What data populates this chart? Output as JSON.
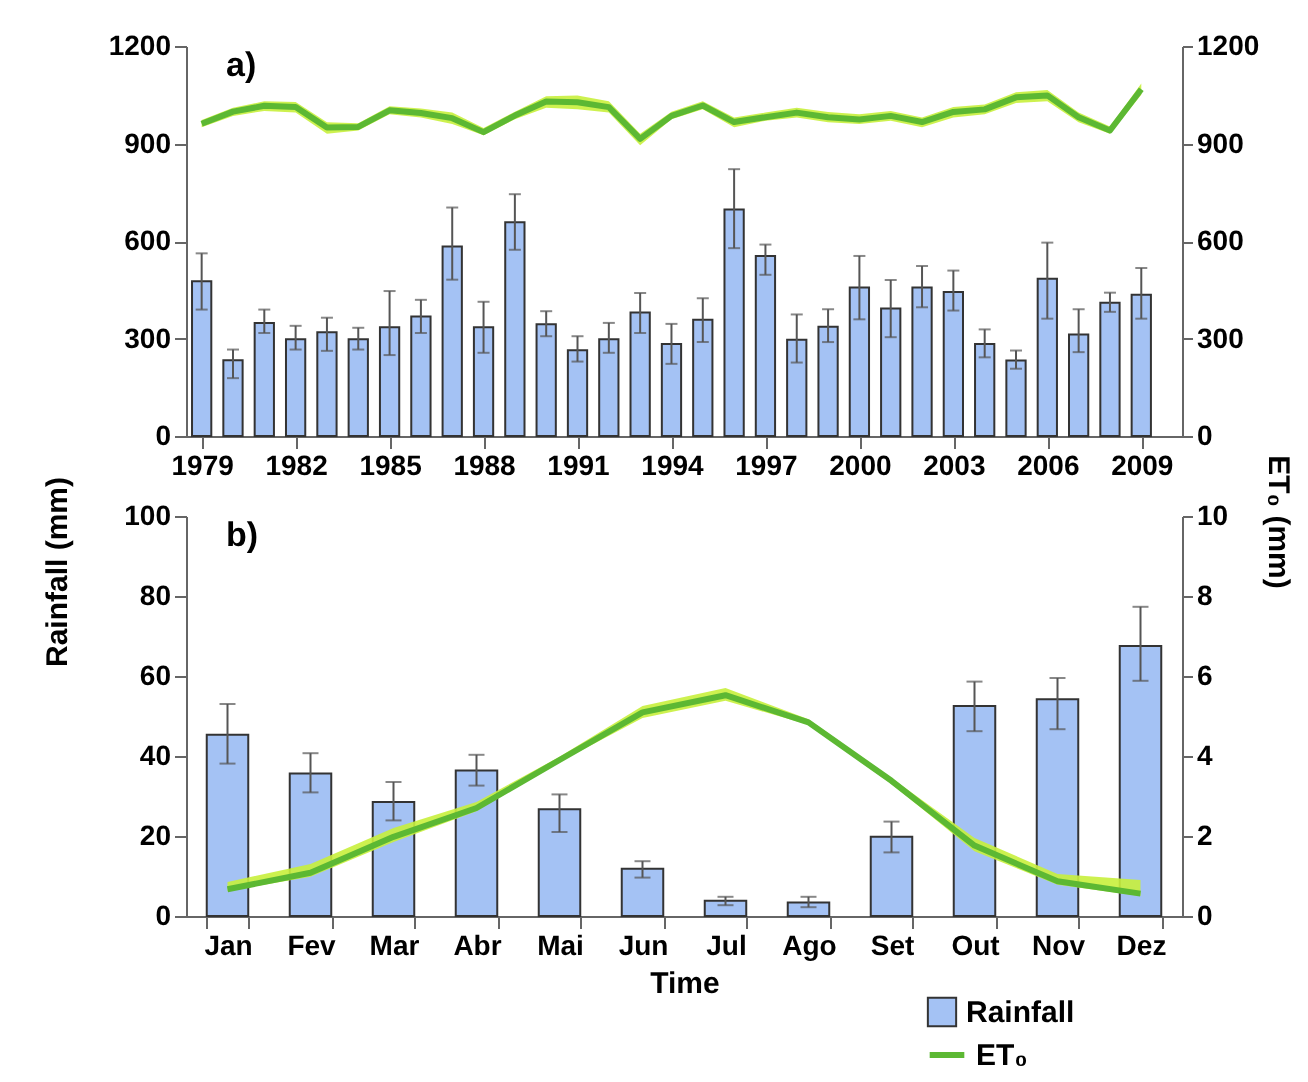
{
  "chart_data": [
    {
      "type": "bar",
      "title": "a)",
      "ylabel": "Rainfall (mm)",
      "y2label": "ET₀ (mm)",
      "x": [
        1979,
        1980,
        1981,
        1982,
        1983,
        1984,
        1985,
        1986,
        1987,
        1988,
        1989,
        1990,
        1991,
        1992,
        1993,
        1994,
        1995,
        1996,
        1997,
        1998,
        1999,
        2000,
        2001,
        2002,
        2003,
        2004,
        2005,
        2006,
        2007,
        2008,
        2009
      ],
      "xlim": [
        1978.5,
        2010.3
      ],
      "xticks": [
        1979,
        1982,
        1985,
        1988,
        1991,
        1994,
        1997,
        2000,
        2003,
        2006,
        2009
      ],
      "ylim": [
        0,
        1200
      ],
      "yticks": [
        0,
        300,
        600,
        900,
        1200
      ],
      "y2lim": [
        0,
        1200
      ],
      "y2ticks": [
        0,
        300,
        600,
        900,
        1200
      ],
      "series": [
        {
          "color": "#a4c2f4",
          "values": [
            476,
            233,
            348,
            298,
            319,
            298,
            335,
            368,
            583,
            335,
            658,
            344,
            264,
            298,
            380,
            283,
            358,
            697,
            554,
            296,
            336,
            457,
            392,
            457,
            443,
            283,
            232,
            484,
            312,
            410,
            435
          ],
          "errors": [
            [
              389,
              562
            ],
            [
              178,
              266
            ],
            [
              317,
              389
            ],
            [
              266,
              339
            ],
            [
              262,
              364
            ],
            [
              266,
              333
            ],
            [
              249,
              446
            ],
            [
              317,
              419
            ],
            [
              481,
              703
            ],
            [
              256,
              413
            ],
            [
              573,
              744
            ],
            [
              307,
              384
            ],
            [
              229,
              307
            ],
            [
              256,
              348
            ],
            [
              317,
              440
            ],
            [
              222,
              345
            ],
            [
              289,
              424
            ],
            [
              578,
              821
            ],
            [
              496,
              589
            ],
            [
              226,
              374
            ],
            [
              289,
              390
            ],
            [
              359,
              554
            ],
            [
              304,
              480
            ],
            [
              396,
              523
            ],
            [
              386,
              509
            ],
            [
              242,
              328
            ],
            [
              207,
              263
            ],
            [
              361,
              595
            ],
            [
              258,
              390
            ],
            [
              382,
              441
            ],
            [
              361,
              517
            ]
          ]
        },
        {
          "type": "line",
          "axis": "y2",
          "color": "#5cb833",
          "values": [
            961,
            998,
            1016,
            1012,
            949,
            951,
            1002,
            994,
            978,
            935,
            986,
            1029,
            1027,
            1012,
            914,
            985,
            1017,
            966,
            981,
            995,
            981,
            974,
            985,
            966,
            997,
            1005,
            1042,
            1048,
            981,
            940,
            1067
          ],
          "lower": [
            950,
            985,
            1000,
            995,
            930,
            940,
            990,
            980,
            960,
            925,
            975,
            1010,
            1005,
            995,
            895,
            975,
            1005,
            950,
            970,
            980,
            965,
            960,
            970,
            950,
            980,
            990,
            1025,
            1030,
            965,
            930,
            1050
          ],
          "upper": [
            972,
            1010,
            1030,
            1028,
            965,
            962,
            1015,
            1008,
            995,
            948,
            998,
            1045,
            1048,
            1030,
            930,
            998,
            1030,
            980,
            995,
            1010,
            997,
            990,
            1000,
            980,
            1012,
            1020,
            1058,
            1065,
            995,
            952,
            1085
          ]
        }
      ]
    },
    {
      "type": "bar",
      "title": "b)",
      "xlabel": "Time",
      "categories": [
        "Jan",
        "Fev",
        "Mar",
        "Abr",
        "Mai",
        "Jun",
        "Jul",
        "Ago",
        "Set",
        "Out",
        "Nov",
        "Dez"
      ],
      "ylim": [
        0,
        100
      ],
      "yticks": [
        0,
        20,
        40,
        60,
        80,
        100
      ],
      "y2lim": [
        0,
        10
      ],
      "y2ticks": [
        0,
        2,
        4,
        6,
        8,
        10
      ],
      "legend": "bottom right",
      "series": [
        {
          "name": "Rainfall",
          "color": "#a4c2f4",
          "values": [
            45.3,
            35.6,
            28.5,
            36.4,
            26.7,
            11.8,
            3.8,
            3.4,
            19.8,
            52.5,
            54.2,
            67.5
          ],
          "errors": [
            [
              38.1,
              53
            ],
            [
              30.9,
              40.7
            ],
            [
              23.9,
              33.5
            ],
            [
              32.6,
              40.3
            ],
            [
              21,
              30.4
            ],
            [
              9.6,
              13.7
            ],
            [
              2.7,
              4.8
            ],
            [
              2.2,
              4.8
            ],
            [
              15.9,
              23.6
            ],
            [
              46.2,
              58.6
            ],
            [
              46.7,
              59.5
            ],
            [
              58.8,
              77.3
            ]
          ]
        },
        {
          "type": "line",
          "name": "ET₀",
          "axis": "y2",
          "color": "#5cb833",
          "values": [
            0.67,
            1.08,
            1.98,
            2.7,
            3.9,
            5.09,
            5.52,
            4.84,
            3.38,
            1.76,
            0.87,
            0.56
          ],
          "lower": [
            0.62,
            0.98,
            1.85,
            2.62,
            3.85,
            4.95,
            5.38,
            4.78,
            3.3,
            1.62,
            0.78,
            0.5
          ],
          "upper": [
            0.85,
            1.3,
            2.2,
            2.85,
            3.98,
            5.25,
            5.7,
            4.92,
            3.45,
            1.95,
            1.05,
            0.9
          ]
        }
      ]
    }
  ]
}
